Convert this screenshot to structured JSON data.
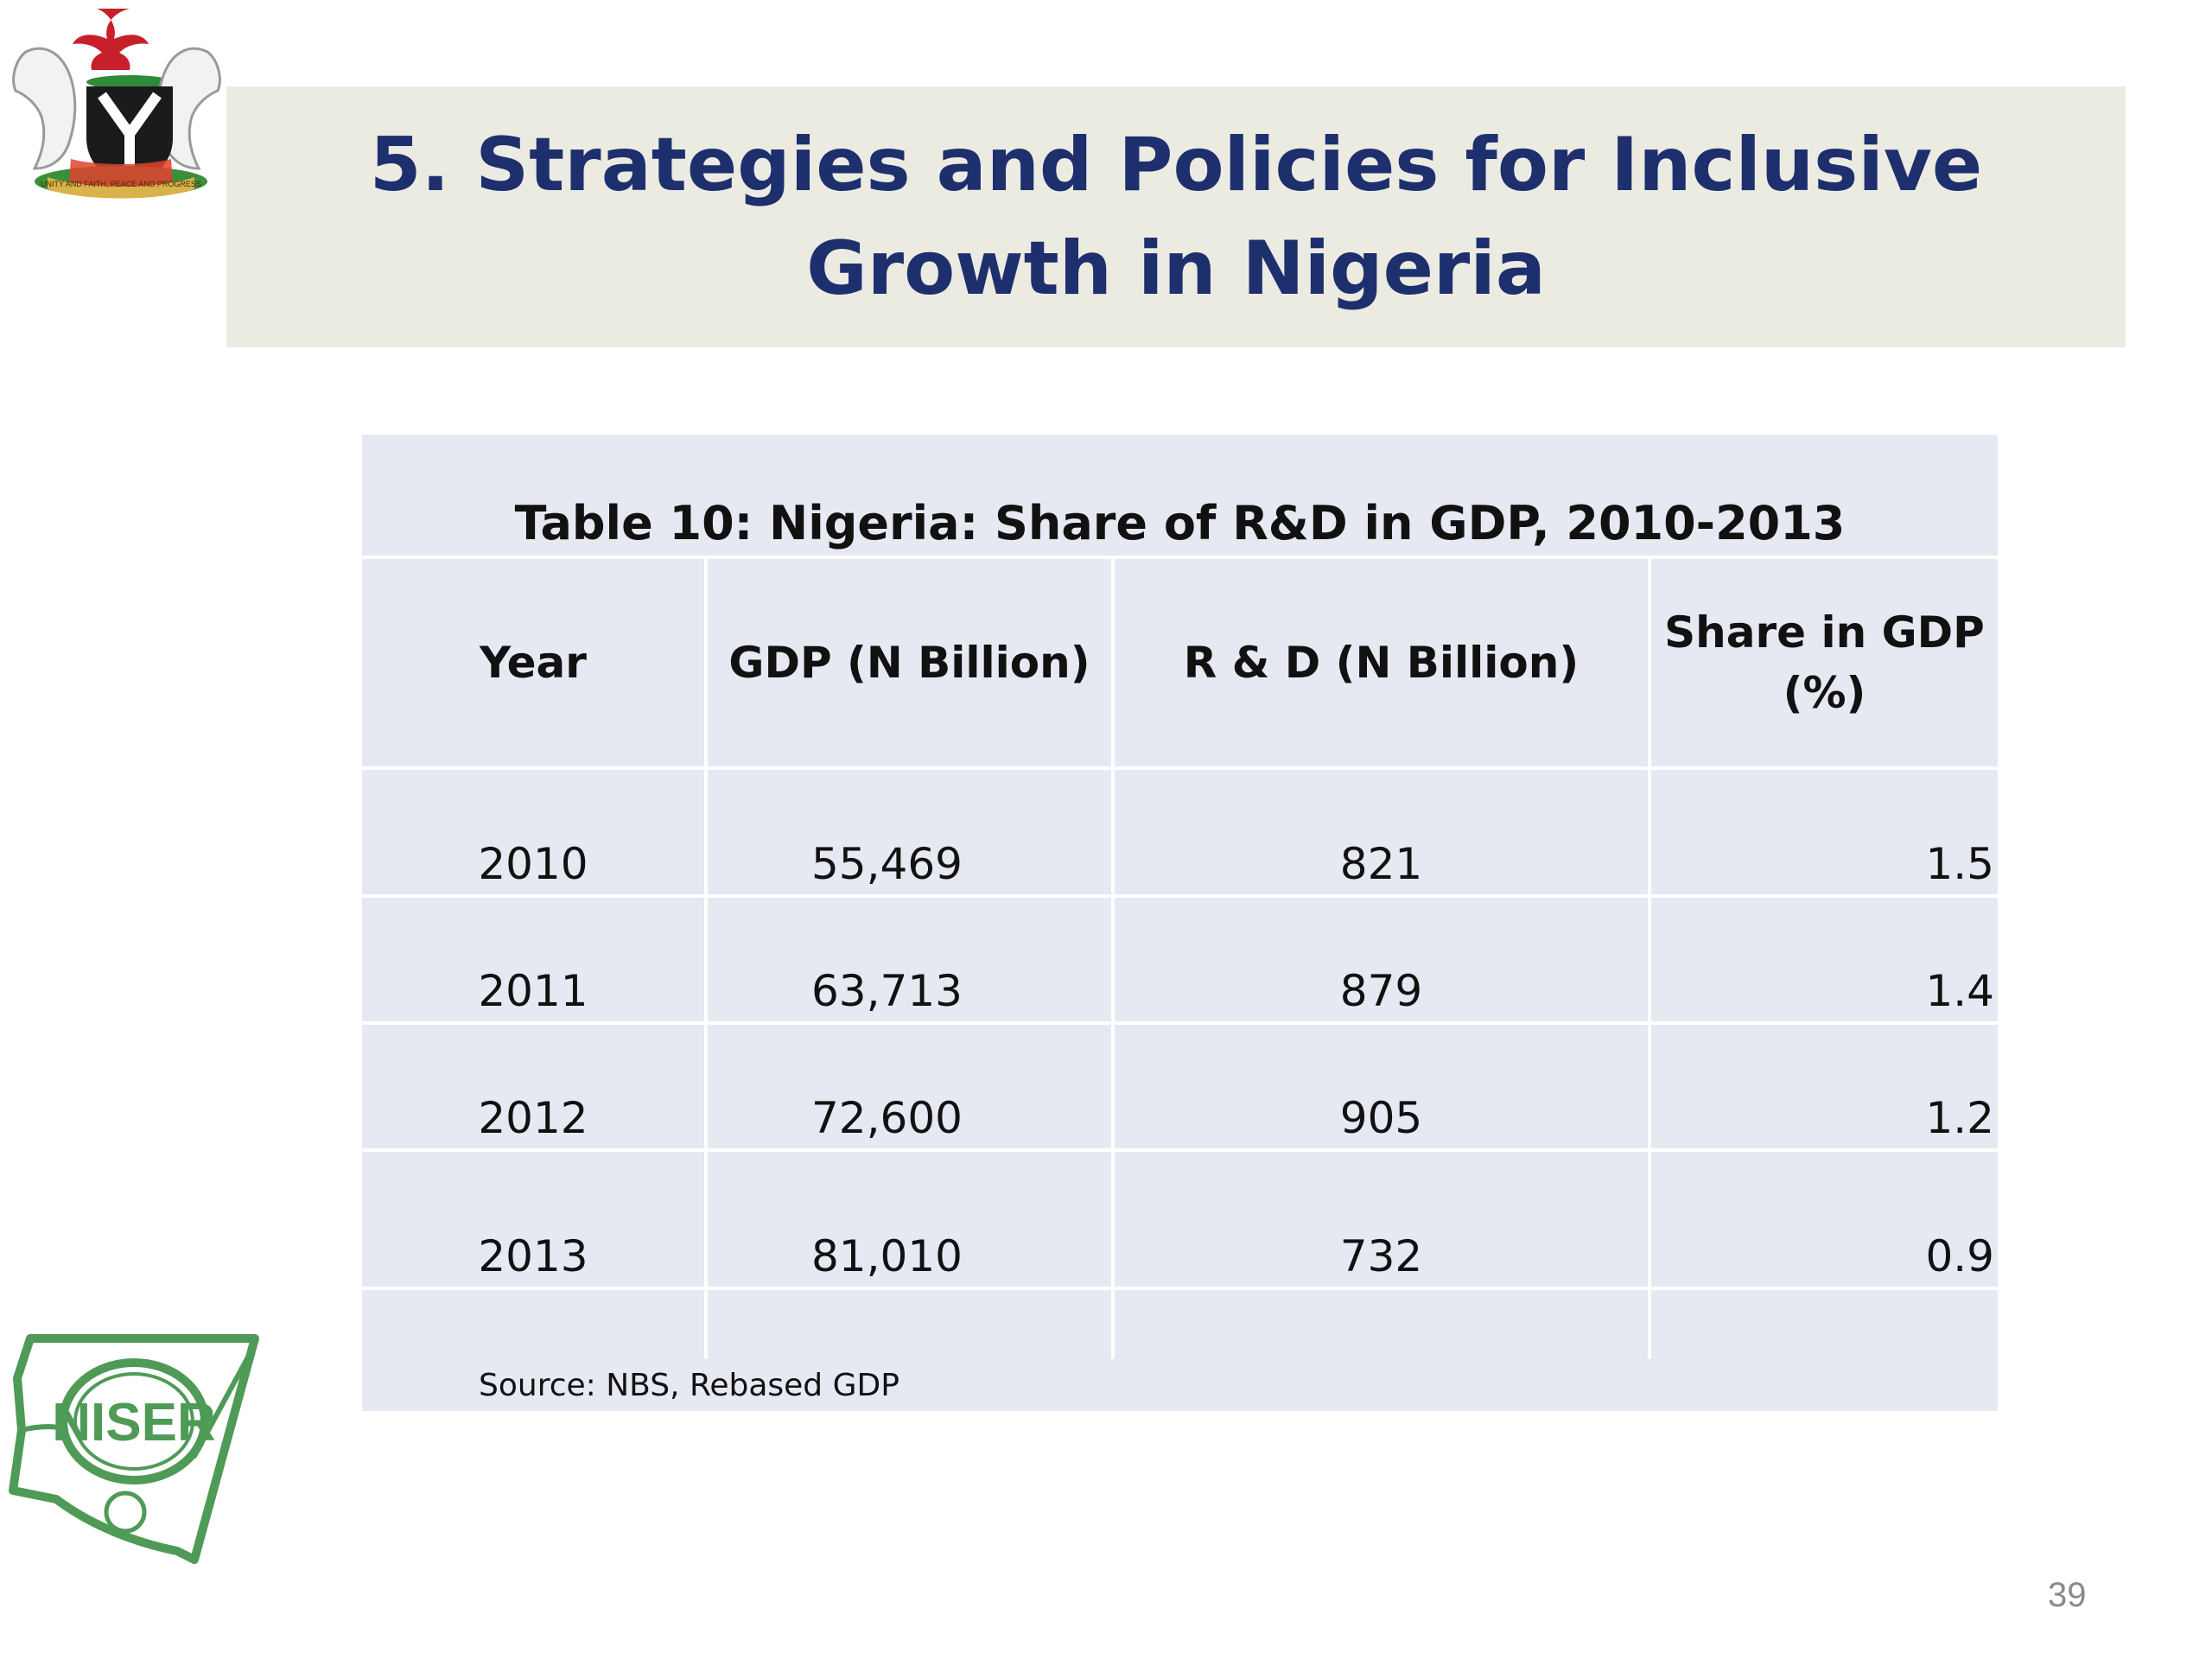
{
  "slide": {
    "title": "5. Strategies and Policies for Inclusive Growth in Nigeria",
    "page_number": "39"
  },
  "logos": {
    "coat_of_arms_icon": "nigeria-coat-of-arms",
    "coat_of_arms_motto": "UNITY AND FAITH, PEACE AND PROGRESS",
    "niser_logo_text": "NISER"
  },
  "table": {
    "caption": "Table 10: Nigeria: Share of R&D in GDP, 2010-2013",
    "headers": [
      "Year",
      "GDP (N Billion)",
      "R & D (N Billion)",
      "Share in GDP (%)"
    ],
    "rows": [
      [
        "2010",
        "55,469",
        "821",
        "1.5"
      ],
      [
        "2011",
        "63,713",
        "879",
        "1.4"
      ],
      [
        "2012",
        "72,600",
        "905",
        "1.2"
      ],
      [
        "2013",
        "81,010",
        "732",
        "0.9"
      ]
    ],
    "source": "Source: NBS, Rebased GDP"
  },
  "colors": {
    "title_text": "#1e2f6e",
    "title_band": "#ecebe2",
    "table_bg": "#e6e9f2",
    "niser_green": "#4f9a57",
    "eagle_red": "#c8202a"
  }
}
